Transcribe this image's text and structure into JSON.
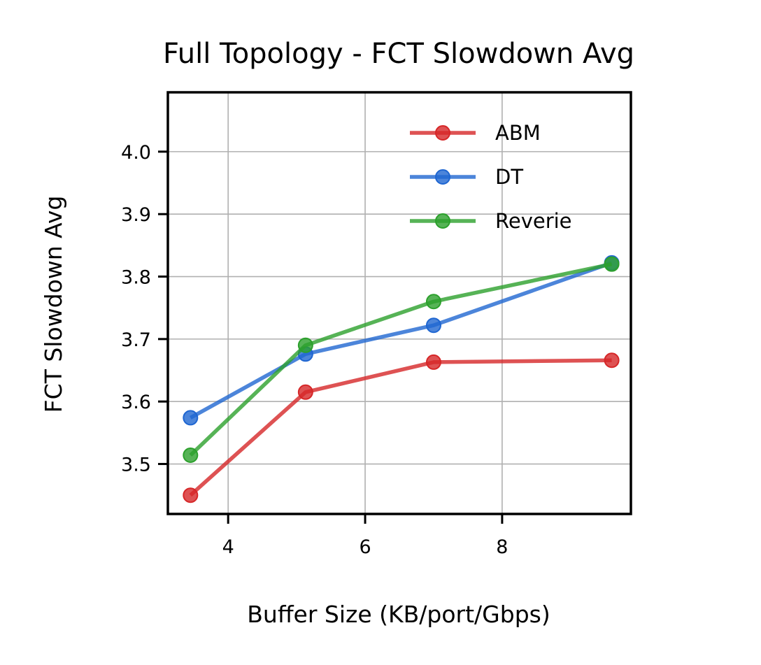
{
  "chart_data": {
    "type": "line",
    "title": "Full Topology - FCT Slowdown Avg",
    "xlabel": "Buffer Size (KB/port/Gbps)",
    "ylabel": "FCT Slowdown Avg",
    "xlim": [
      3.12,
      9.88
    ],
    "ylim": [
      3.42,
      4.095
    ],
    "xticks": [
      4,
      6,
      8
    ],
    "xtick_labels": [
      "4",
      "6",
      "8"
    ],
    "yticks": [
      3.5,
      3.6,
      3.7,
      3.8,
      3.9,
      4.0
    ],
    "ytick_labels": [
      "3.5",
      "3.6",
      "3.7",
      "3.8",
      "3.9",
      "4.0"
    ],
    "grid": true,
    "legend_position": "top-right",
    "x": [
      3.45,
      5.13,
      7.0,
      9.6
    ],
    "series": [
      {
        "name": "ABM",
        "color": "#d62728",
        "values": [
          3.45,
          3.615,
          3.663,
          3.666
        ]
      },
      {
        "name": "DT",
        "color": "#1f66d1",
        "values": [
          3.574,
          3.676,
          3.722,
          3.822
        ]
      },
      {
        "name": "Reverie",
        "color": "#2ca02c",
        "values": [
          3.514,
          3.69,
          3.76,
          3.82
        ]
      }
    ]
  }
}
